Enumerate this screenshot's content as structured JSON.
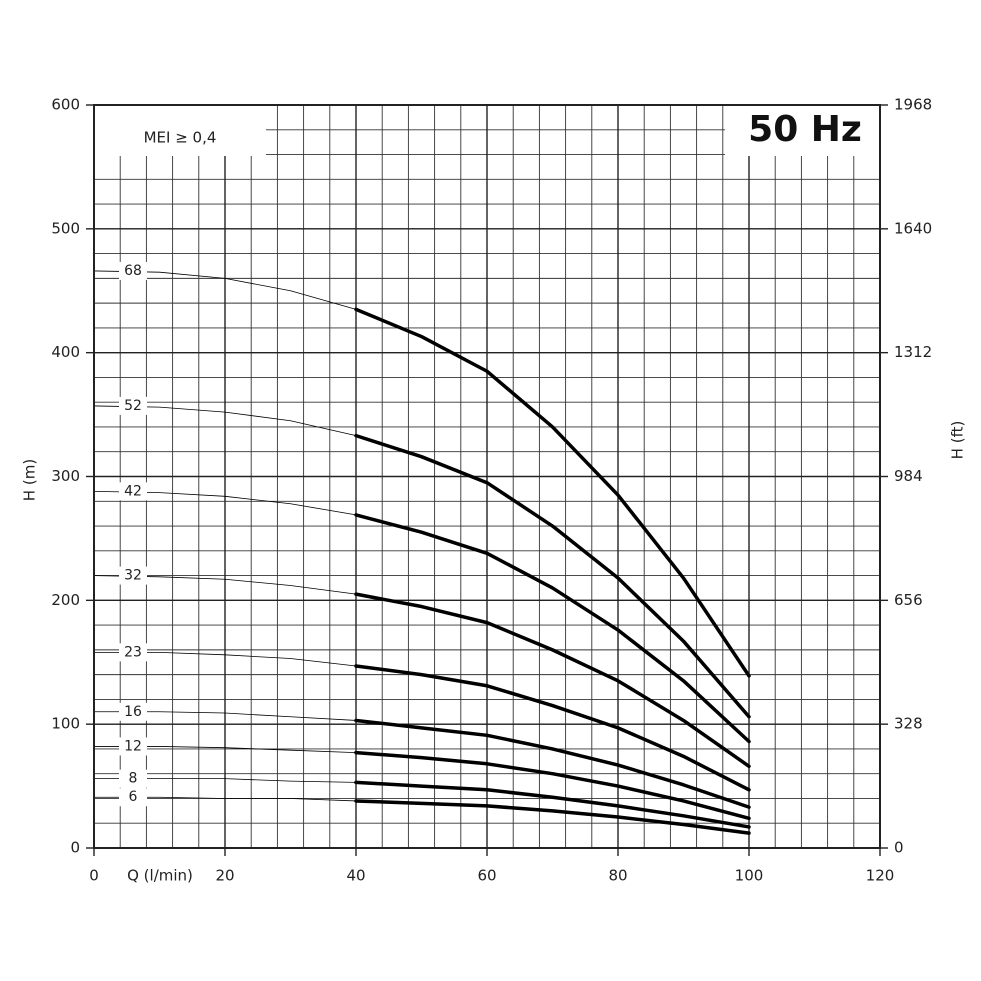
{
  "chart_data": {
    "type": "line",
    "annotations": [
      "MEI ≥ 0,4",
      "50 Hz"
    ],
    "xlabel": "Q (l/min)",
    "ylabel": "H (m)",
    "y2label": "H (ft)",
    "x": [
      0,
      10,
      20,
      30,
      40,
      50,
      60,
      70,
      80,
      90,
      100
    ],
    "series": [
      {
        "name": "68",
        "color": "#000000",
        "values": [
          466,
          465,
          460,
          450,
          435,
          413,
          385,
          340,
          285,
          218,
          139
        ]
      },
      {
        "name": "52",
        "color": "#000000",
        "values": [
          357,
          356,
          352,
          345,
          333,
          316,
          295,
          260,
          218,
          167,
          106
        ]
      },
      {
        "name": "42",
        "color": "#000000",
        "values": [
          288,
          287,
          284,
          278,
          269,
          255,
          238,
          210,
          176,
          135,
          86
        ]
      },
      {
        "name": "32",
        "color": "#000000",
        "values": [
          220,
          219,
          217,
          212,
          205,
          195,
          182,
          160,
          135,
          103,
          66
        ]
      },
      {
        "name": "23",
        "color": "#000000",
        "values": [
          158,
          158,
          156,
          153,
          147,
          140,
          131,
          115,
          97,
          74,
          47
        ]
      },
      {
        "name": "16",
        "color": "#000000",
        "values": [
          110,
          110,
          109,
          106,
          103,
          97,
          91,
          80,
          67,
          51,
          33
        ]
      },
      {
        "name": "12",
        "color": "#000000",
        "values": [
          82,
          82,
          81,
          79,
          77,
          73,
          68,
          60,
          50,
          38,
          24
        ]
      },
      {
        "name": "8",
        "color": "#000000",
        "values": [
          56,
          56,
          56,
          54,
          53,
          50,
          47,
          41,
          34,
          26,
          17
        ]
      },
      {
        "name": "6",
        "color": "#000000",
        "values": [
          41,
          41,
          40,
          40,
          38,
          36,
          34,
          30,
          25,
          19,
          12
        ]
      }
    ],
    "xlim": [
      0,
      120
    ],
    "xticks": [
      0,
      20,
      40,
      60,
      80,
      100,
      120
    ],
    "ylim": [
      0,
      600
    ],
    "yticks": [
      0,
      100,
      200,
      300,
      400,
      500,
      600
    ],
    "y2lim": [
      0,
      1968
    ],
    "y2ticks": [
      0,
      328,
      656,
      984,
      1312,
      1640,
      1968
    ],
    "x_minor_step": 4,
    "y_minor_step": 20,
    "grid": true
  }
}
